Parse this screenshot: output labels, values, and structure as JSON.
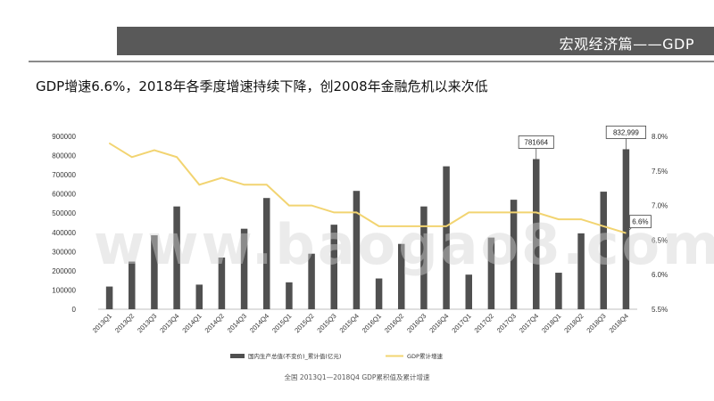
{
  "header": {
    "banner_title": "宏观经济篇——GDP"
  },
  "headline": "GDP增速6.6%，2018年各季度增速持续下降，创2008年金融危机以来次低",
  "watermark": "www.baogao8.com",
  "source": "全国  2013Q1—2018Q4     GDP累积值及累计增速",
  "colors": {
    "bar": "#505050",
    "line": "#f2d471",
    "banner": "#595959"
  },
  "chart_data": {
    "type": "bar",
    "categories": [
      "2013Q1",
      "2013Q2",
      "2013Q3",
      "2013Q4",
      "2014Q1",
      "2014Q2",
      "2014Q3",
      "2014Q4",
      "2015Q1",
      "2015Q2",
      "2015Q3",
      "2015Q4",
      "2016Q1",
      "2016Q2",
      "2016Q3",
      "2016Q4",
      "2017Q1",
      "2017Q2",
      "2017Q3",
      "2017Q4",
      "2018Q1",
      "2018Q2",
      "2018Q3",
      "2018Q4"
    ],
    "series": [
      {
        "name": "国内生产总值(不变价)_累计值(亿元)",
        "type": "bar",
        "axis": "left",
        "values": [
          118000,
          248000,
          385000,
          535000,
          128000,
          269000,
          419000,
          579000,
          140000,
          289000,
          440000,
          616000,
          160000,
          340000,
          535000,
          744000,
          180000,
          373000,
          570000,
          781664,
          190000,
          395000,
          612000,
          832999
        ]
      },
      {
        "name": "GDP累计增速",
        "type": "line",
        "axis": "right",
        "values": [
          7.9,
          7.7,
          7.8,
          7.7,
          7.3,
          7.4,
          7.3,
          7.3,
          7.0,
          7.0,
          6.9,
          6.9,
          6.7,
          6.7,
          6.7,
          6.7,
          6.9,
          6.9,
          6.9,
          6.9,
          6.8,
          6.8,
          6.7,
          6.6
        ]
      }
    ],
    "y_left": {
      "min": 0,
      "max": 900000,
      "ticks": [
        "0",
        "100000",
        "200000",
        "300000",
        "400000",
        "500000",
        "600000",
        "700000",
        "800000",
        "900000"
      ]
    },
    "y_right": {
      "min": 5.5,
      "max": 8.0,
      "ticks": [
        "5.5%",
        "6.0%",
        "6.5%",
        "7.0%",
        "7.5%",
        "8.0%"
      ]
    },
    "annotations": [
      {
        "index": 19,
        "series": 0,
        "label": "781664"
      },
      {
        "index": 23,
        "series": 0,
        "label": "832,999"
      },
      {
        "index": 23,
        "series": 1,
        "label": "6.6%"
      }
    ],
    "legend": {
      "position": "bottom",
      "items": [
        "国内生产总值(不变价)_累计值(亿元)",
        "GDP累计增速"
      ]
    },
    "grid": false
  }
}
